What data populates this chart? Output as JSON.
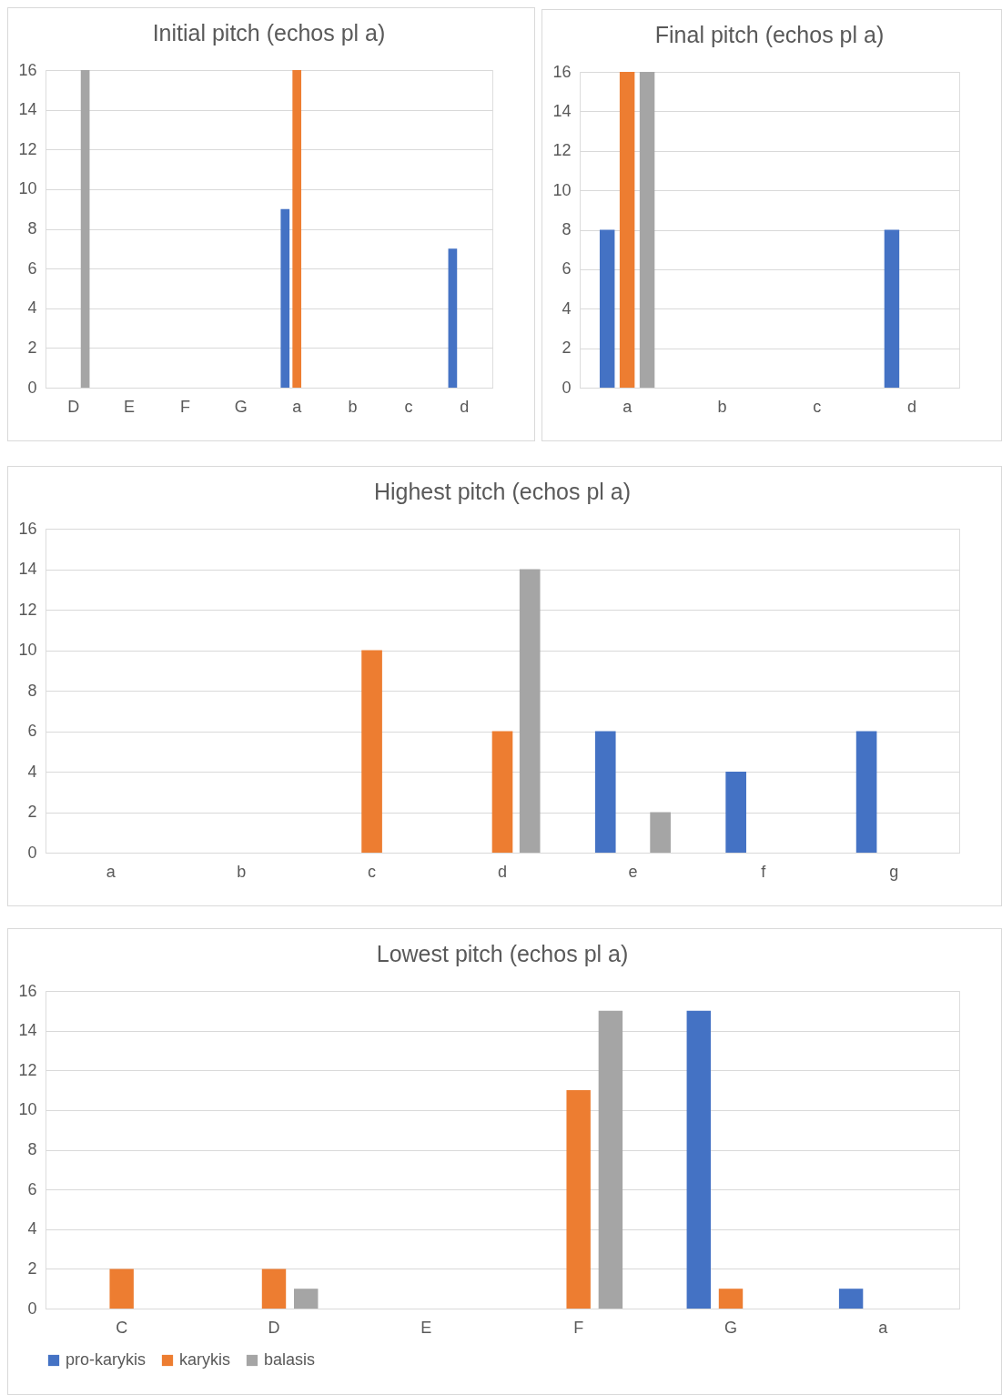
{
  "chart_data": [
    {
      "type": "bar",
      "title": "Initial pitch (echos pl a)",
      "categories": [
        "D",
        "E",
        "F",
        "G",
        "a",
        "b",
        "c",
        "d"
      ],
      "ylim": [
        0,
        16
      ],
      "yticks": [
        0,
        2,
        4,
        6,
        8,
        10,
        12,
        14,
        16
      ],
      "grid": "y",
      "series": [
        {
          "color": "#4472c4",
          "values": [
            0,
            0,
            0,
            0,
            9,
            0,
            0,
            7
          ]
        },
        {
          "color": "#ed7d31",
          "values": [
            0,
            0,
            0,
            0,
            16,
            0,
            0,
            0
          ]
        },
        {
          "color": "#a5a5a5",
          "values": [
            16,
            0,
            0,
            0,
            0,
            0,
            0,
            0
          ]
        }
      ]
    },
    {
      "type": "bar",
      "title": "Final pitch (echos pl a)",
      "categories": [
        "a",
        "b",
        "c",
        "d"
      ],
      "ylim": [
        0,
        16
      ],
      "yticks": [
        0,
        2,
        4,
        6,
        8,
        10,
        12,
        14,
        16
      ],
      "grid": "y",
      "series": [
        {
          "color": "#4472c4",
          "values": [
            8,
            0,
            0,
            8
          ]
        },
        {
          "color": "#ed7d31",
          "values": [
            16,
            0,
            0,
            0
          ]
        },
        {
          "color": "#a5a5a5",
          "values": [
            16,
            0,
            0,
            0
          ]
        }
      ]
    },
    {
      "type": "bar",
      "title": "Highest pitch (echos pl a)",
      "categories": [
        "a",
        "b",
        "c",
        "d",
        "e",
        "f",
        "g"
      ],
      "ylim": [
        0,
        16
      ],
      "yticks": [
        0,
        2,
        4,
        6,
        8,
        10,
        12,
        14,
        16
      ],
      "grid": "y",
      "series": [
        {
          "color": "#4472c4",
          "values": [
            0,
            0,
            0,
            0,
            6,
            4,
            6
          ]
        },
        {
          "color": "#ed7d31",
          "values": [
            0,
            0,
            10,
            6,
            0,
            0,
            0
          ]
        },
        {
          "color": "#a5a5a5",
          "values": [
            0,
            0,
            0,
            14,
            2,
            0,
            0
          ]
        }
      ]
    },
    {
      "type": "bar",
      "title": "Lowest pitch (echos pl a)",
      "categories": [
        "C",
        "D",
        "E",
        "F",
        "G",
        "a"
      ],
      "ylim": [
        0,
        16
      ],
      "yticks": [
        0,
        2,
        4,
        6,
        8,
        10,
        12,
        14,
        16
      ],
      "grid": "y",
      "legend": "bottom",
      "series": [
        {
          "name": "pro-karykis",
          "color": "#4472c4",
          "values": [
            0,
            0,
            0,
            0,
            15,
            1
          ]
        },
        {
          "name": "karykis",
          "color": "#ed7d31",
          "values": [
            2,
            2,
            0,
            11,
            1,
            0
          ]
        },
        {
          "name": "balasis",
          "color": "#a5a5a5",
          "values": [
            0,
            1,
            0,
            15,
            0,
            0
          ]
        }
      ]
    }
  ]
}
